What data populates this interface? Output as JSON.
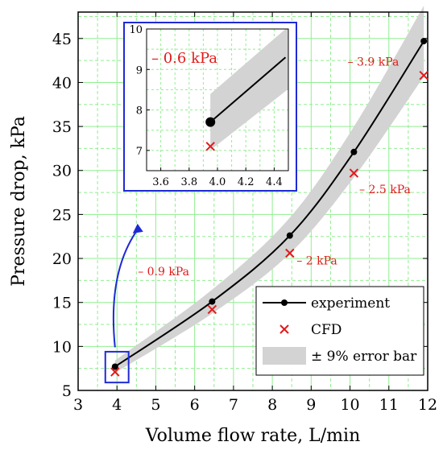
{
  "chart_data": {
    "type": "line",
    "xlabel": "Volume flow rate, L/min",
    "ylabel": "Pressure drop, kPa",
    "xlim": [
      3,
      12
    ],
    "ylim": [
      5,
      48
    ],
    "xticks": [
      3,
      4,
      5,
      6,
      7,
      8,
      9,
      10,
      11,
      12
    ],
    "yticks": [
      5,
      10,
      15,
      20,
      25,
      30,
      35,
      40,
      45
    ],
    "grid": true,
    "legend_position": "bottom-right",
    "series": [
      {
        "name": "experiment",
        "style": "line-with-markers",
        "color": "#000000",
        "x": [
          3.95,
          6.45,
          8.45,
          10.1,
          11.9
        ],
        "y": [
          7.7,
          15.1,
          22.6,
          32.1,
          44.7
        ]
      },
      {
        "name": "CFD",
        "style": "x-markers",
        "color": "#e01b1b",
        "x": [
          3.95,
          6.45,
          8.45,
          10.1,
          11.9
        ],
        "y": [
          7.1,
          14.2,
          20.6,
          29.7,
          40.8
        ]
      },
      {
        "name": "± 9% error bar",
        "style": "band",
        "color": "#d3d3d3",
        "relative_error": 0.09
      }
    ],
    "annotations": [
      {
        "text": "– 0.9 kPa",
        "x": 5.2,
        "y": 18.1
      },
      {
        "text": "– 2 kPa",
        "x": 9.15,
        "y": 19.3
      },
      {
        "text": "– 2.5 kPa",
        "x": 10.9,
        "y": 27.4
      },
      {
        "text": "– 3.9 kPa",
        "x": 10.6,
        "y": 41.9
      }
    ],
    "inset": {
      "xlim": [
        3.5,
        4.5
      ],
      "ylim": [
        6.5,
        10
      ],
      "xticks": [
        "3.6",
        "3.8",
        "4.0",
        "4.2",
        "4.4"
      ],
      "yticks": [
        "7",
        "8",
        "9",
        "10"
      ],
      "annotation": "– 0.6 kPa",
      "experiment_line": {
        "x": [
          3.95,
          4.48
        ],
        "y": [
          7.7,
          9.3
        ]
      },
      "experiment_point": {
        "x": 3.95,
        "y": 7.7
      },
      "cfd_point": {
        "x": 3.95,
        "y": 7.1
      }
    }
  },
  "colors": {
    "grid": "#90ee90",
    "band": "#d3d3d3",
    "experiment": "#000000",
    "cfd": "#e01b1b",
    "inset_frame": "#1f2ad6",
    "highlight": "#1f2ad6",
    "arrow": "#1f2ad6"
  }
}
